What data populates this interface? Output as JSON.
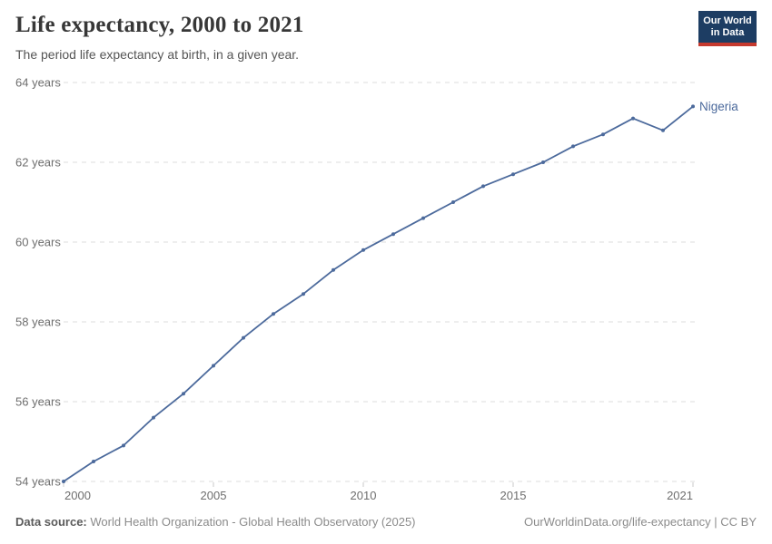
{
  "header": {
    "title": "Life expectancy, 2000 to 2021",
    "subtitle": "The period life expectancy at birth, in a given year.",
    "logo": {
      "line1": "Our World",
      "line2": "in Data"
    }
  },
  "footer": {
    "source_label": "Data source:",
    "source_value": " World Health Organization - Global Health Observatory (2025)",
    "rights": "OurWorldinData.org/life-expectancy | CC BY"
  },
  "colors": {
    "line": "#4C6A9C",
    "series_label": "#4C6A9C",
    "grid": "#dddddd",
    "tick": "#c8c8c8",
    "axis_text": "#6e6e6e",
    "logo_bg": "#1d3d63",
    "logo_bar": "#c5392e"
  },
  "chart_data": {
    "type": "line",
    "title": "Life expectancy, 2000 to 2021",
    "subtitle": "The period life expectancy at birth, in a given year.",
    "xlabel": "",
    "ylabel": "years",
    "xlim": [
      2000,
      2021
    ],
    "ylim": [
      54,
      64
    ],
    "grid": "horizontal-dashed",
    "legend_position": "end-of-line",
    "x": [
      2000,
      2001,
      2002,
      2003,
      2004,
      2005,
      2006,
      2007,
      2008,
      2009,
      2010,
      2011,
      2012,
      2013,
      2014,
      2015,
      2016,
      2017,
      2018,
      2019,
      2020,
      2021
    ],
    "series": [
      {
        "name": "Nigeria",
        "values": [
          54.0,
          54.5,
          54.9,
          55.6,
          56.2,
          56.9,
          57.6,
          58.2,
          58.7,
          59.3,
          59.8,
          60.2,
          60.6,
          61.0,
          61.4,
          61.7,
          62.0,
          62.4,
          62.7,
          63.1,
          62.8,
          63.4
        ]
      }
    ],
    "y_ticks": [
      {
        "value": 54,
        "label": "54 years"
      },
      {
        "value": 56,
        "label": "56 years"
      },
      {
        "value": 58,
        "label": "58 years"
      },
      {
        "value": 60,
        "label": "60 years"
      },
      {
        "value": 62,
        "label": "62 years"
      },
      {
        "value": 64,
        "label": "64 years"
      }
    ],
    "x_ticks": [
      {
        "value": 2000,
        "label": "2000"
      },
      {
        "value": 2005,
        "label": "2005"
      },
      {
        "value": 2010,
        "label": "2010"
      },
      {
        "value": 2015,
        "label": "2015"
      },
      {
        "value": 2021,
        "label": "2021"
      }
    ]
  }
}
